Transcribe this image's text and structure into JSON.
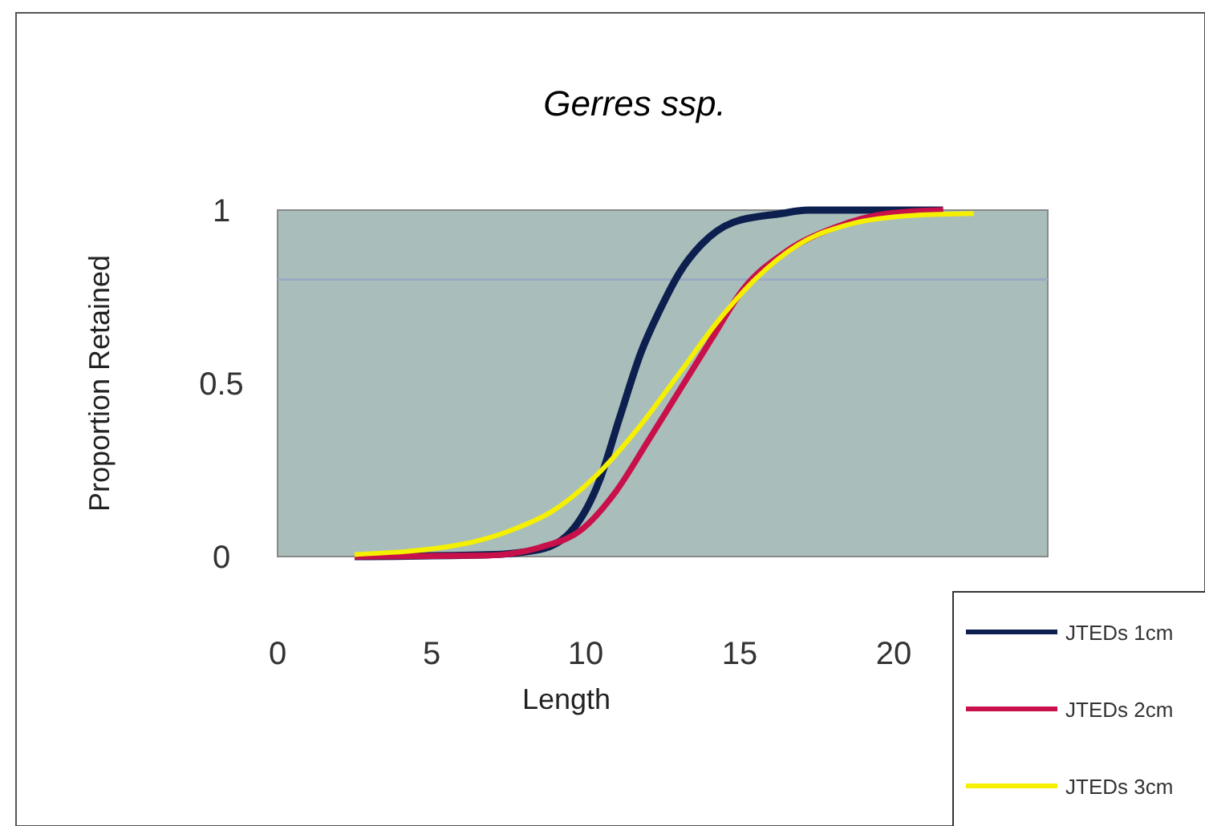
{
  "chart_data": {
    "type": "line",
    "title": "Gerres ssp.",
    "xlabel": "Length",
    "ylabel": "Proportion Retained",
    "xlim": [
      0,
      25
    ],
    "xticks": [
      0,
      5,
      10,
      15,
      20
    ],
    "ylim": [
      0,
      1
    ],
    "yticks": [
      0,
      0.5,
      1
    ],
    "grid": false,
    "legend": "bottom right",
    "marker": "none",
    "line_style": "solid",
    "ref_lines": [
      {
        "axis": "y",
        "value": 0.8,
        "color": "#9aaac4"
      }
    ],
    "series": [
      {
        "name": "JTEDs 1cm",
        "color": "#0d1f4f",
        "x": [
          2.5,
          6.8,
          8.5,
          9.6,
          10.45,
          11.1,
          11.8,
          12.4,
          13.05,
          13.75,
          14.8,
          16.35,
          17.2,
          21.6
        ],
        "values": [
          0,
          0.005,
          0.02,
          0.08,
          0.22,
          0.4,
          0.59,
          0.71,
          0.82,
          0.9,
          0.965,
          0.99,
          1,
          1
        ]
      },
      {
        "name": "JTEDs 2cm",
        "color": "#c8104a",
        "x": [
          2.5,
          6.8,
          8.5,
          9.9,
          11,
          12,
          13.05,
          14.1,
          15.1,
          16.5,
          18.1,
          19.8,
          21.6
        ],
        "values": [
          0,
          0.003,
          0.026,
          0.08,
          0.19,
          0.33,
          0.48,
          0.63,
          0.77,
          0.88,
          0.95,
          0.99,
          1
        ]
      },
      {
        "name": "JTEDs 3cm",
        "color": "#f5f000",
        "x": [
          2.5,
          5.9,
          7.7,
          8.9,
          10.3,
          11.7,
          13.05,
          14.3,
          15.5,
          16.9,
          18.6,
          20.7,
          22.6
        ],
        "values": [
          0.006,
          0.034,
          0.08,
          0.13,
          0.23,
          0.37,
          0.53,
          0.68,
          0.8,
          0.9,
          0.96,
          0.985,
          0.99
        ]
      }
    ]
  }
}
